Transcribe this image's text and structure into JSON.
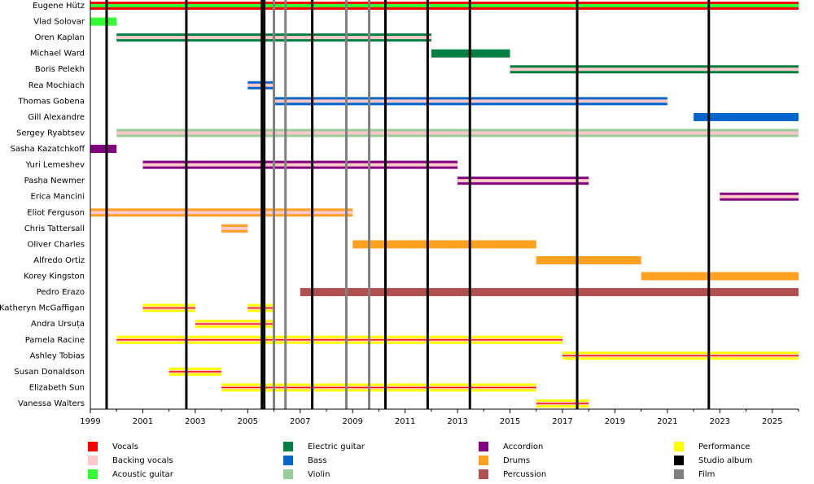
{
  "chart_data": {
    "type": "timeline",
    "xlim": [
      1999,
      2026
    ],
    "xticks": [
      1999,
      2001,
      2003,
      2005,
      2007,
      2009,
      2011,
      2013,
      2015,
      2017,
      2019,
      2021,
      2023,
      2025
    ],
    "xminorticks": [
      2000,
      2002,
      2004,
      2006,
      2008,
      2010,
      2012,
      2014,
      2016,
      2018,
      2020,
      2022,
      2024,
      2026
    ],
    "roles": [
      {
        "name": "Vocals",
        "color": "#ff0000"
      },
      {
        "name": "Backing vocals",
        "color": "#ffc8c8"
      },
      {
        "name": "Acoustic guitar",
        "color": "#33ff33"
      },
      {
        "name": "Electric guitar",
        "color": "#008040"
      },
      {
        "name": "Bass",
        "color": "#0066cc"
      },
      {
        "name": "Violin",
        "color": "#99cc99"
      },
      {
        "name": "Accordion",
        "color": "#800080"
      },
      {
        "name": "Drums",
        "color": "#ffa020"
      },
      {
        "name": "Percussion",
        "color": "#b05050"
      },
      {
        "name": "Performance",
        "color": "#ffff00"
      }
    ],
    "events": [
      {
        "name": "Studio album",
        "color": "#000000",
        "x": [
          1999.62,
          2002.66,
          2005.54,
          2005.63,
          2007.46,
          2010.25,
          2011.86,
          2013.47,
          2017.56,
          2022.58
        ]
      },
      {
        "name": "Film",
        "color": "#808080",
        "x": [
          2006.0,
          2006.44,
          2008.76,
          2009.63
        ]
      }
    ],
    "members": [
      {
        "name": "Eugene Hütz",
        "bars": [
          {
            "start": 1999,
            "end": 2026,
            "roles": [
              "Vocals",
              "Acoustic guitar"
            ]
          }
        ]
      },
      {
        "name": "Vlad Solovar",
        "bars": [
          {
            "start": 1999,
            "end": 2000,
            "roles": [
              "Acoustic guitar"
            ]
          }
        ]
      },
      {
        "name": "Oren Kaplan",
        "bars": [
          {
            "start": 2000,
            "end": 2012,
            "roles": [
              "Electric guitar",
              "Backing vocals"
            ]
          }
        ]
      },
      {
        "name": "Michael Ward",
        "bars": [
          {
            "start": 2012,
            "end": 2015,
            "roles": [
              "Electric guitar"
            ]
          }
        ]
      },
      {
        "name": "Boris Pelekh",
        "bars": [
          {
            "start": 2015,
            "end": 2026,
            "roles": [
              "Electric guitar",
              "Backing vocals"
            ]
          }
        ]
      },
      {
        "name": "Rea Mochiach",
        "bars": [
          {
            "start": 2005,
            "end": 2006,
            "roles": [
              "Bass",
              "Backing vocals"
            ]
          }
        ]
      },
      {
        "name": "Thomas Gobena",
        "bars": [
          {
            "start": 2006,
            "end": 2021,
            "roles": [
              "Bass",
              "Backing vocals"
            ]
          }
        ]
      },
      {
        "name": "Gill Alexandre",
        "bars": [
          {
            "start": 2022,
            "end": 2026,
            "roles": [
              "Bass"
            ]
          }
        ]
      },
      {
        "name": "Sergey Ryabtsev",
        "bars": [
          {
            "start": 2000,
            "end": 2026,
            "roles": [
              "Violin",
              "Backing vocals"
            ]
          }
        ]
      },
      {
        "name": "Sasha Kazatchkoff",
        "bars": [
          {
            "start": 1999,
            "end": 2000,
            "roles": [
              "Accordion"
            ]
          }
        ]
      },
      {
        "name": "Yuri Lemeshev",
        "bars": [
          {
            "start": 2001,
            "end": 2013,
            "roles": [
              "Accordion",
              "Backing vocals"
            ]
          }
        ]
      },
      {
        "name": "Pasha Newmer",
        "bars": [
          {
            "start": 2013,
            "end": 2018,
            "roles": [
              "Accordion",
              "Backing vocals"
            ]
          }
        ]
      },
      {
        "name": "Erica Mancini",
        "bars": [
          {
            "start": 2023,
            "end": 2026,
            "roles": [
              "Accordion",
              "Backing vocals"
            ]
          }
        ]
      },
      {
        "name": "Eliot Ferguson",
        "bars": [
          {
            "start": 1999,
            "end": 2009,
            "roles": [
              "Drums",
              "Backing vocals"
            ]
          }
        ]
      },
      {
        "name": "Chris Tattersall",
        "bars": [
          {
            "start": 2004,
            "end": 2005,
            "roles": [
              "Drums",
              "Backing vocals"
            ]
          }
        ]
      },
      {
        "name": "Oliver Charles",
        "bars": [
          {
            "start": 2009,
            "end": 2016,
            "roles": [
              "Drums"
            ]
          }
        ]
      },
      {
        "name": "Alfredo Ortiz",
        "bars": [
          {
            "start": 2016,
            "end": 2020,
            "roles": [
              "Drums"
            ]
          }
        ]
      },
      {
        "name": "Korey Kingston",
        "bars": [
          {
            "start": 2020,
            "end": 2026,
            "roles": [
              "Drums"
            ]
          }
        ]
      },
      {
        "name": "Pedro Erazo",
        "bars": [
          {
            "start": 2007,
            "end": 2026,
            "roles": [
              "Percussion"
            ]
          }
        ]
      },
      {
        "name": "Katheryn McGaffigan",
        "bars": [
          {
            "start": 2001,
            "end": 2003,
            "roles": [
              "Performance",
              "Backing vocals",
              "Vocals"
            ]
          },
          {
            "start": 2005,
            "end": 2006,
            "roles": [
              "Performance",
              "Backing vocals",
              "Vocals"
            ]
          }
        ]
      },
      {
        "name": "Andra Ursuța",
        "bars": [
          {
            "start": 2003,
            "end": 2006,
            "roles": [
              "Performance",
              "Backing vocals",
              "Vocals"
            ]
          }
        ]
      },
      {
        "name": "Pamela Racine",
        "bars": [
          {
            "start": 2000,
            "end": 2017,
            "roles": [
              "Performance",
              "Backing vocals",
              "Vocals"
            ]
          }
        ]
      },
      {
        "name": "Ashley Tobias",
        "bars": [
          {
            "start": 2017,
            "end": 2026,
            "roles": [
              "Performance",
              "Backing vocals",
              "Vocals"
            ]
          }
        ]
      },
      {
        "name": "Susan Donaldson",
        "bars": [
          {
            "start": 2002,
            "end": 2004,
            "roles": [
              "Performance",
              "Backing vocals",
              "Vocals"
            ]
          }
        ]
      },
      {
        "name": "Elizabeth Sun",
        "bars": [
          {
            "start": 2004,
            "end": 2016,
            "roles": [
              "Performance",
              "Backing vocals",
              "Vocals"
            ]
          }
        ]
      },
      {
        "name": "Vanessa Walters",
        "bars": [
          {
            "start": 2016,
            "end": 2018,
            "roles": [
              "Performance",
              "Backing vocals",
              "Vocals"
            ]
          }
        ]
      }
    ]
  }
}
